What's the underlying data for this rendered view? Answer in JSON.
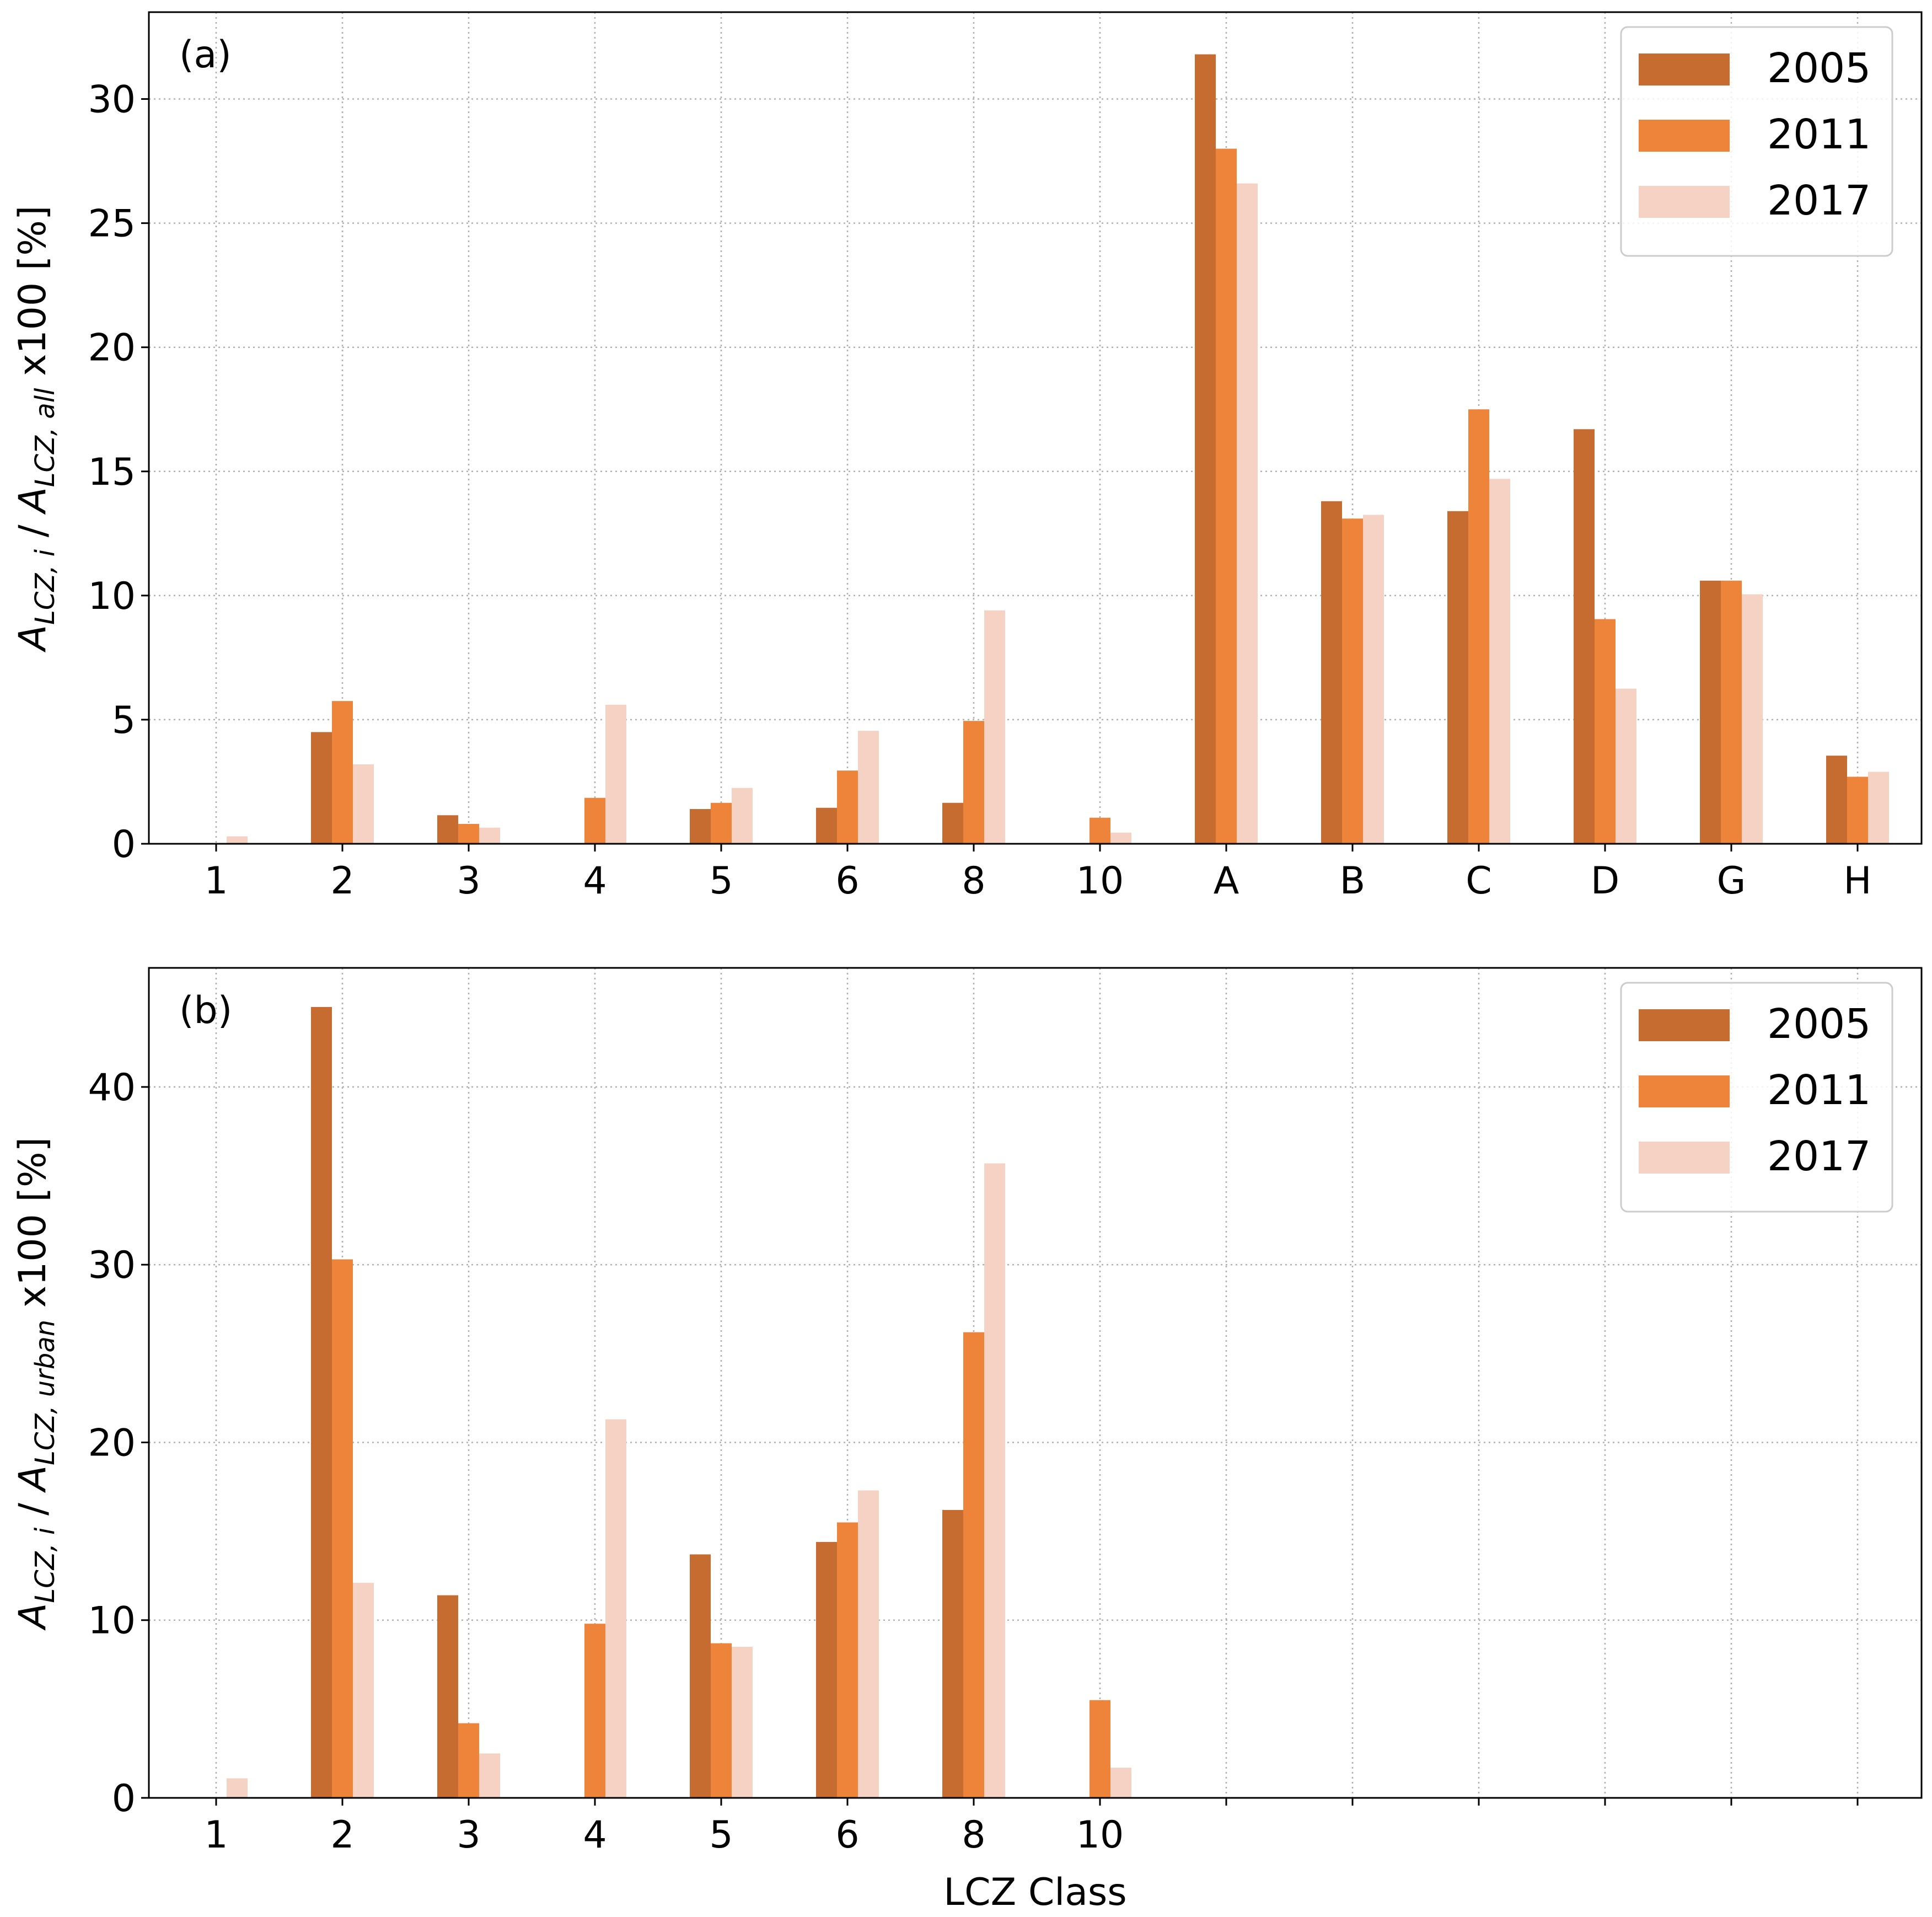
{
  "chart_data": [
    {
      "type": "bar",
      "panel_label": "(a)",
      "categories": [
        "1",
        "2",
        "3",
        "4",
        "5",
        "6",
        "8",
        "10",
        "A",
        "B",
        "C",
        "D",
        "G",
        "H"
      ],
      "series": [
        {
          "name": "2005",
          "color": "#c76c30",
          "values": [
            0,
            4.5,
            1.15,
            0,
            1.4,
            1.45,
            1.65,
            0,
            31.8,
            13.8,
            13.4,
            16.7,
            10.6,
            3.55
          ]
        },
        {
          "name": "2011",
          "color": "#ee8439",
          "values": [
            0,
            5.75,
            0.8,
            1.85,
            1.65,
            2.95,
            4.95,
            1.05,
            28.0,
            13.1,
            17.5,
            9.05,
            10.6,
            2.7
          ]
        },
        {
          "name": "2017",
          "color": "#f5d2c3",
          "values": [
            0.3,
            3.2,
            0.65,
            5.6,
            2.25,
            4.55,
            9.4,
            0.45,
            26.6,
            13.25,
            14.7,
            6.25,
            10.05,
            2.9
          ]
        }
      ],
      "yticks": [
        "0",
        "5",
        "10",
        "15",
        "20",
        "25",
        "30"
      ],
      "ylim": [
        0,
        33.5
      ],
      "ylabel": {
        "base": "A",
        "sub1": "LCZ, i",
        "sep": " / ",
        "sub2": "LCZ, all",
        "suffix": " x100 [%]"
      },
      "xlabel": "",
      "grid": true,
      "legend": [
        "2005",
        "2011",
        "2017"
      ],
      "legend_position": "top-right"
    },
    {
      "type": "bar",
      "panel_label": "(b)",
      "categories": [
        "1",
        "2",
        "3",
        "4",
        "5",
        "6",
        "8",
        "10",
        "",
        "",
        "",
        "",
        "",
        ""
      ],
      "series": [
        {
          "name": "2005",
          "color": "#c76c30",
          "values": [
            0,
            44.5,
            11.4,
            0,
            13.7,
            14.4,
            16.2,
            0,
            0,
            0,
            0,
            0,
            0,
            0
          ]
        },
        {
          "name": "2011",
          "color": "#ee8439",
          "values": [
            0,
            30.3,
            4.2,
            9.8,
            8.7,
            15.5,
            26.2,
            5.5,
            0,
            0,
            0,
            0,
            0,
            0
          ]
        },
        {
          "name": "2017",
          "color": "#f5d2c3",
          "values": [
            1.1,
            12.1,
            2.5,
            21.3,
            8.5,
            17.3,
            35.7,
            1.7,
            0,
            0,
            0,
            0,
            0,
            0
          ]
        }
      ],
      "yticks": [
        "0",
        "10",
        "20",
        "30",
        "40"
      ],
      "ylim": [
        0,
        46.7
      ],
      "ylabel": {
        "base": "A",
        "sub1": "LCZ, i",
        "sep": " / ",
        "sub2": "LCZ, urban",
        "suffix": " x100  [%]"
      },
      "xlabel": "LCZ Class",
      "grid": true,
      "legend": [
        "2005",
        "2011",
        "2017"
      ],
      "legend_position": "top-right"
    }
  ]
}
